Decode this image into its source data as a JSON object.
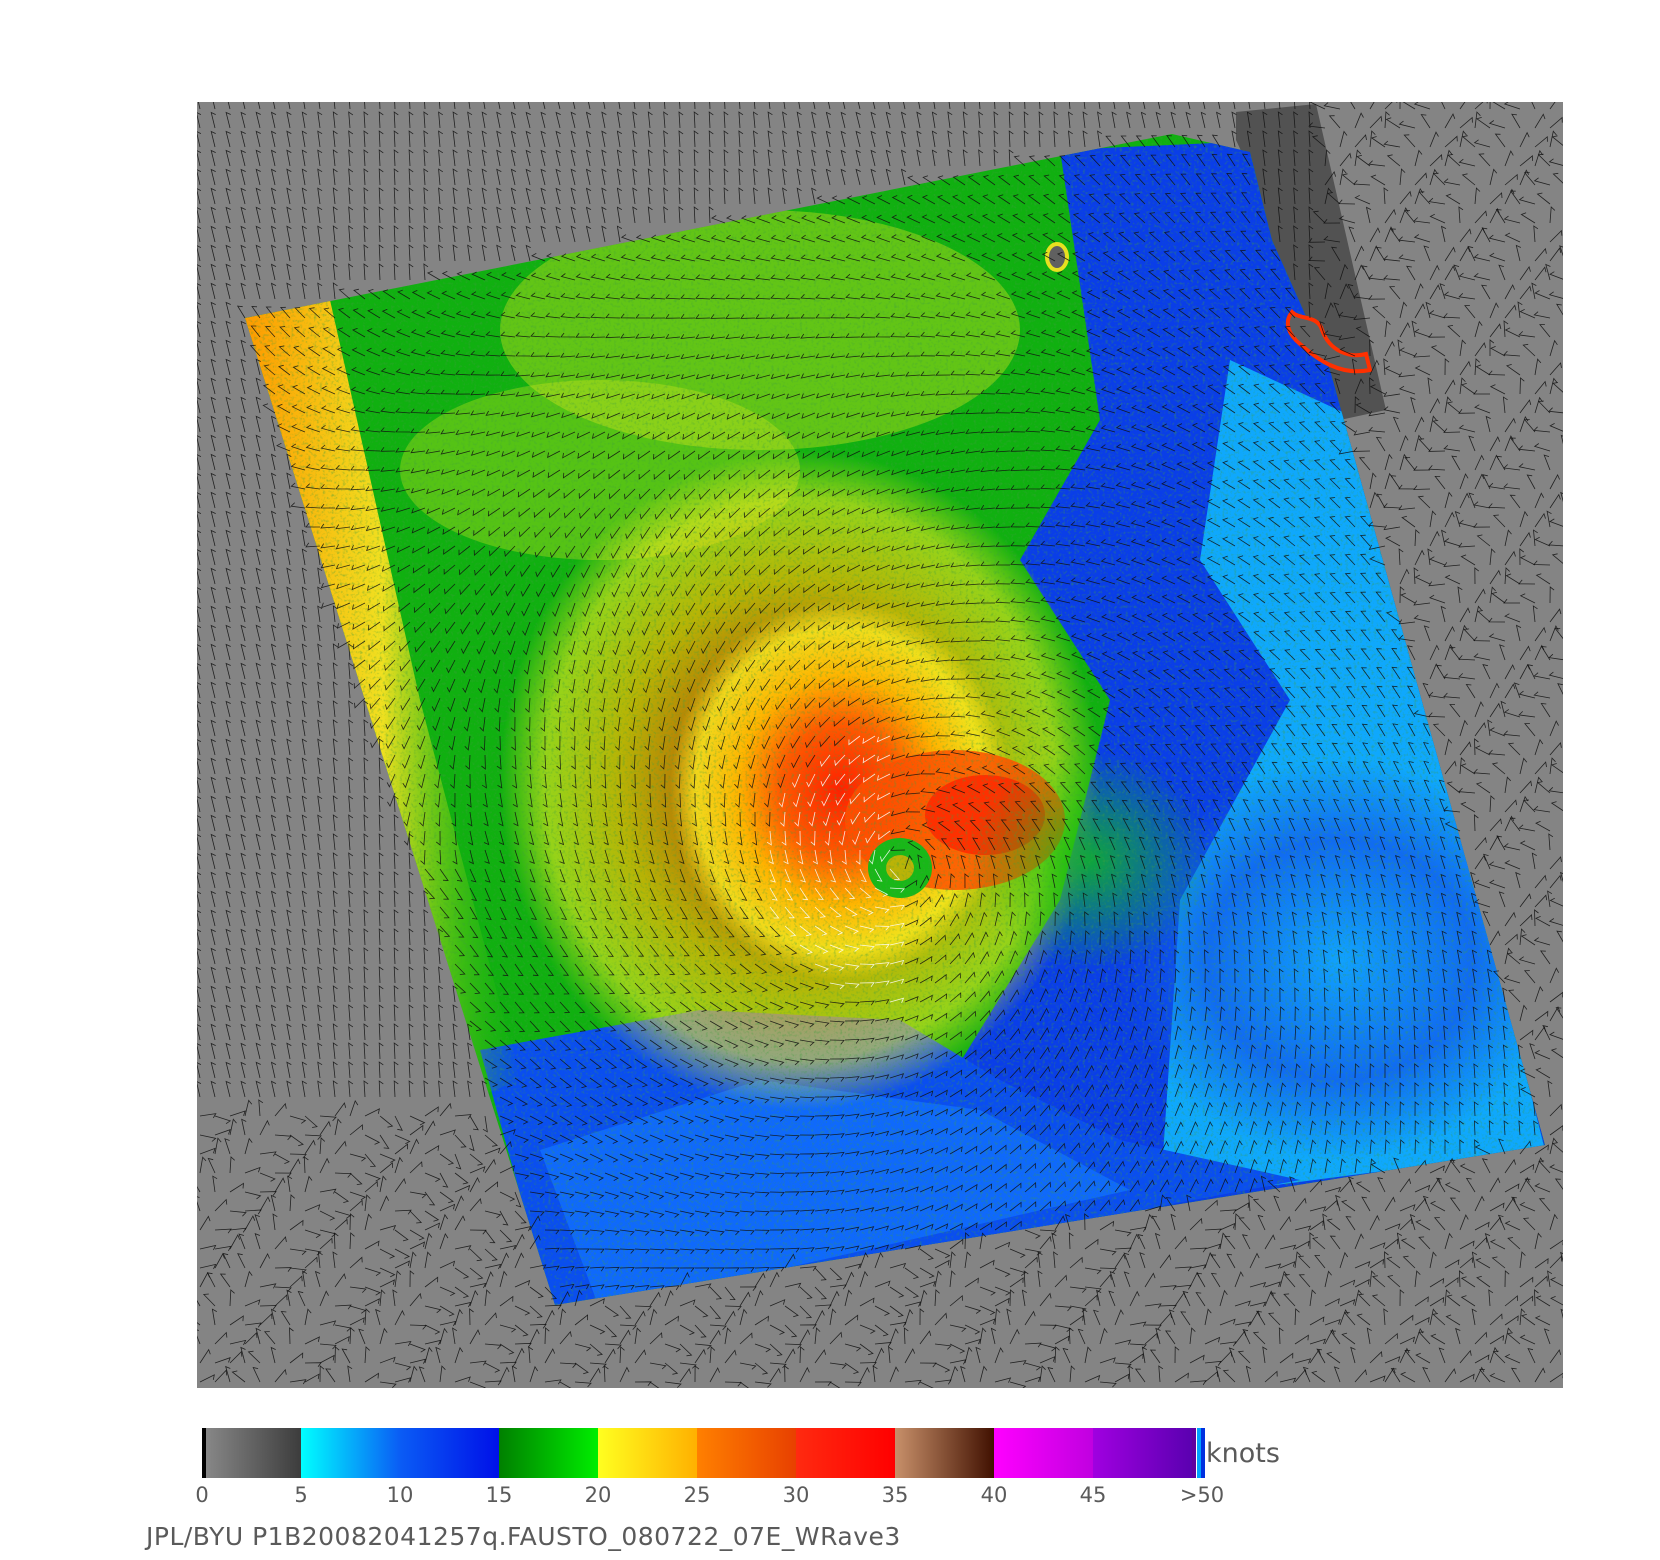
{
  "image": {
    "colors": {
      "background": "#ffffff",
      "panel_gray": "#848484",
      "land_dark": "#525252",
      "vector": "#000000"
    }
  },
  "colorbar": {
    "tick_labels": [
      "0",
      "5",
      "10",
      "15",
      "20",
      "25",
      "30",
      "35",
      "40",
      "45",
      ">50"
    ],
    "units": "knots",
    "segments": [
      {
        "range": "0-5",
        "from": "#8a8a8a",
        "to": "#3c3c3c"
      },
      {
        "range": "5-10",
        "from": "#00ffff",
        "to": "#0a5cf5"
      },
      {
        "range": "10-15",
        "from": "#0a5cf5",
        "to": "#0010e8"
      },
      {
        "range": "15-20",
        "from": "#008000",
        "to": "#00ee00"
      },
      {
        "range": "20-25",
        "from": "#ffff20",
        "to": "#ffb000"
      },
      {
        "range": "25-30",
        "from": "#ff8000",
        "to": "#e84000"
      },
      {
        "range": "30-35",
        "from": "#ff2a10",
        "to": "#ff0000"
      },
      {
        "range": "35-40",
        "from": "#c8906a",
        "to": "#401000"
      },
      {
        "range": "40-45",
        "from": "#ff00ff",
        "to": "#c000e0"
      },
      {
        "range": "45-50",
        "from": "#a000e0",
        "to": "#5a00b0"
      }
    ]
  },
  "caption": "JPL/BYU  P1B20082041257q.FAUSTO_080722_07E_WRave3"
}
